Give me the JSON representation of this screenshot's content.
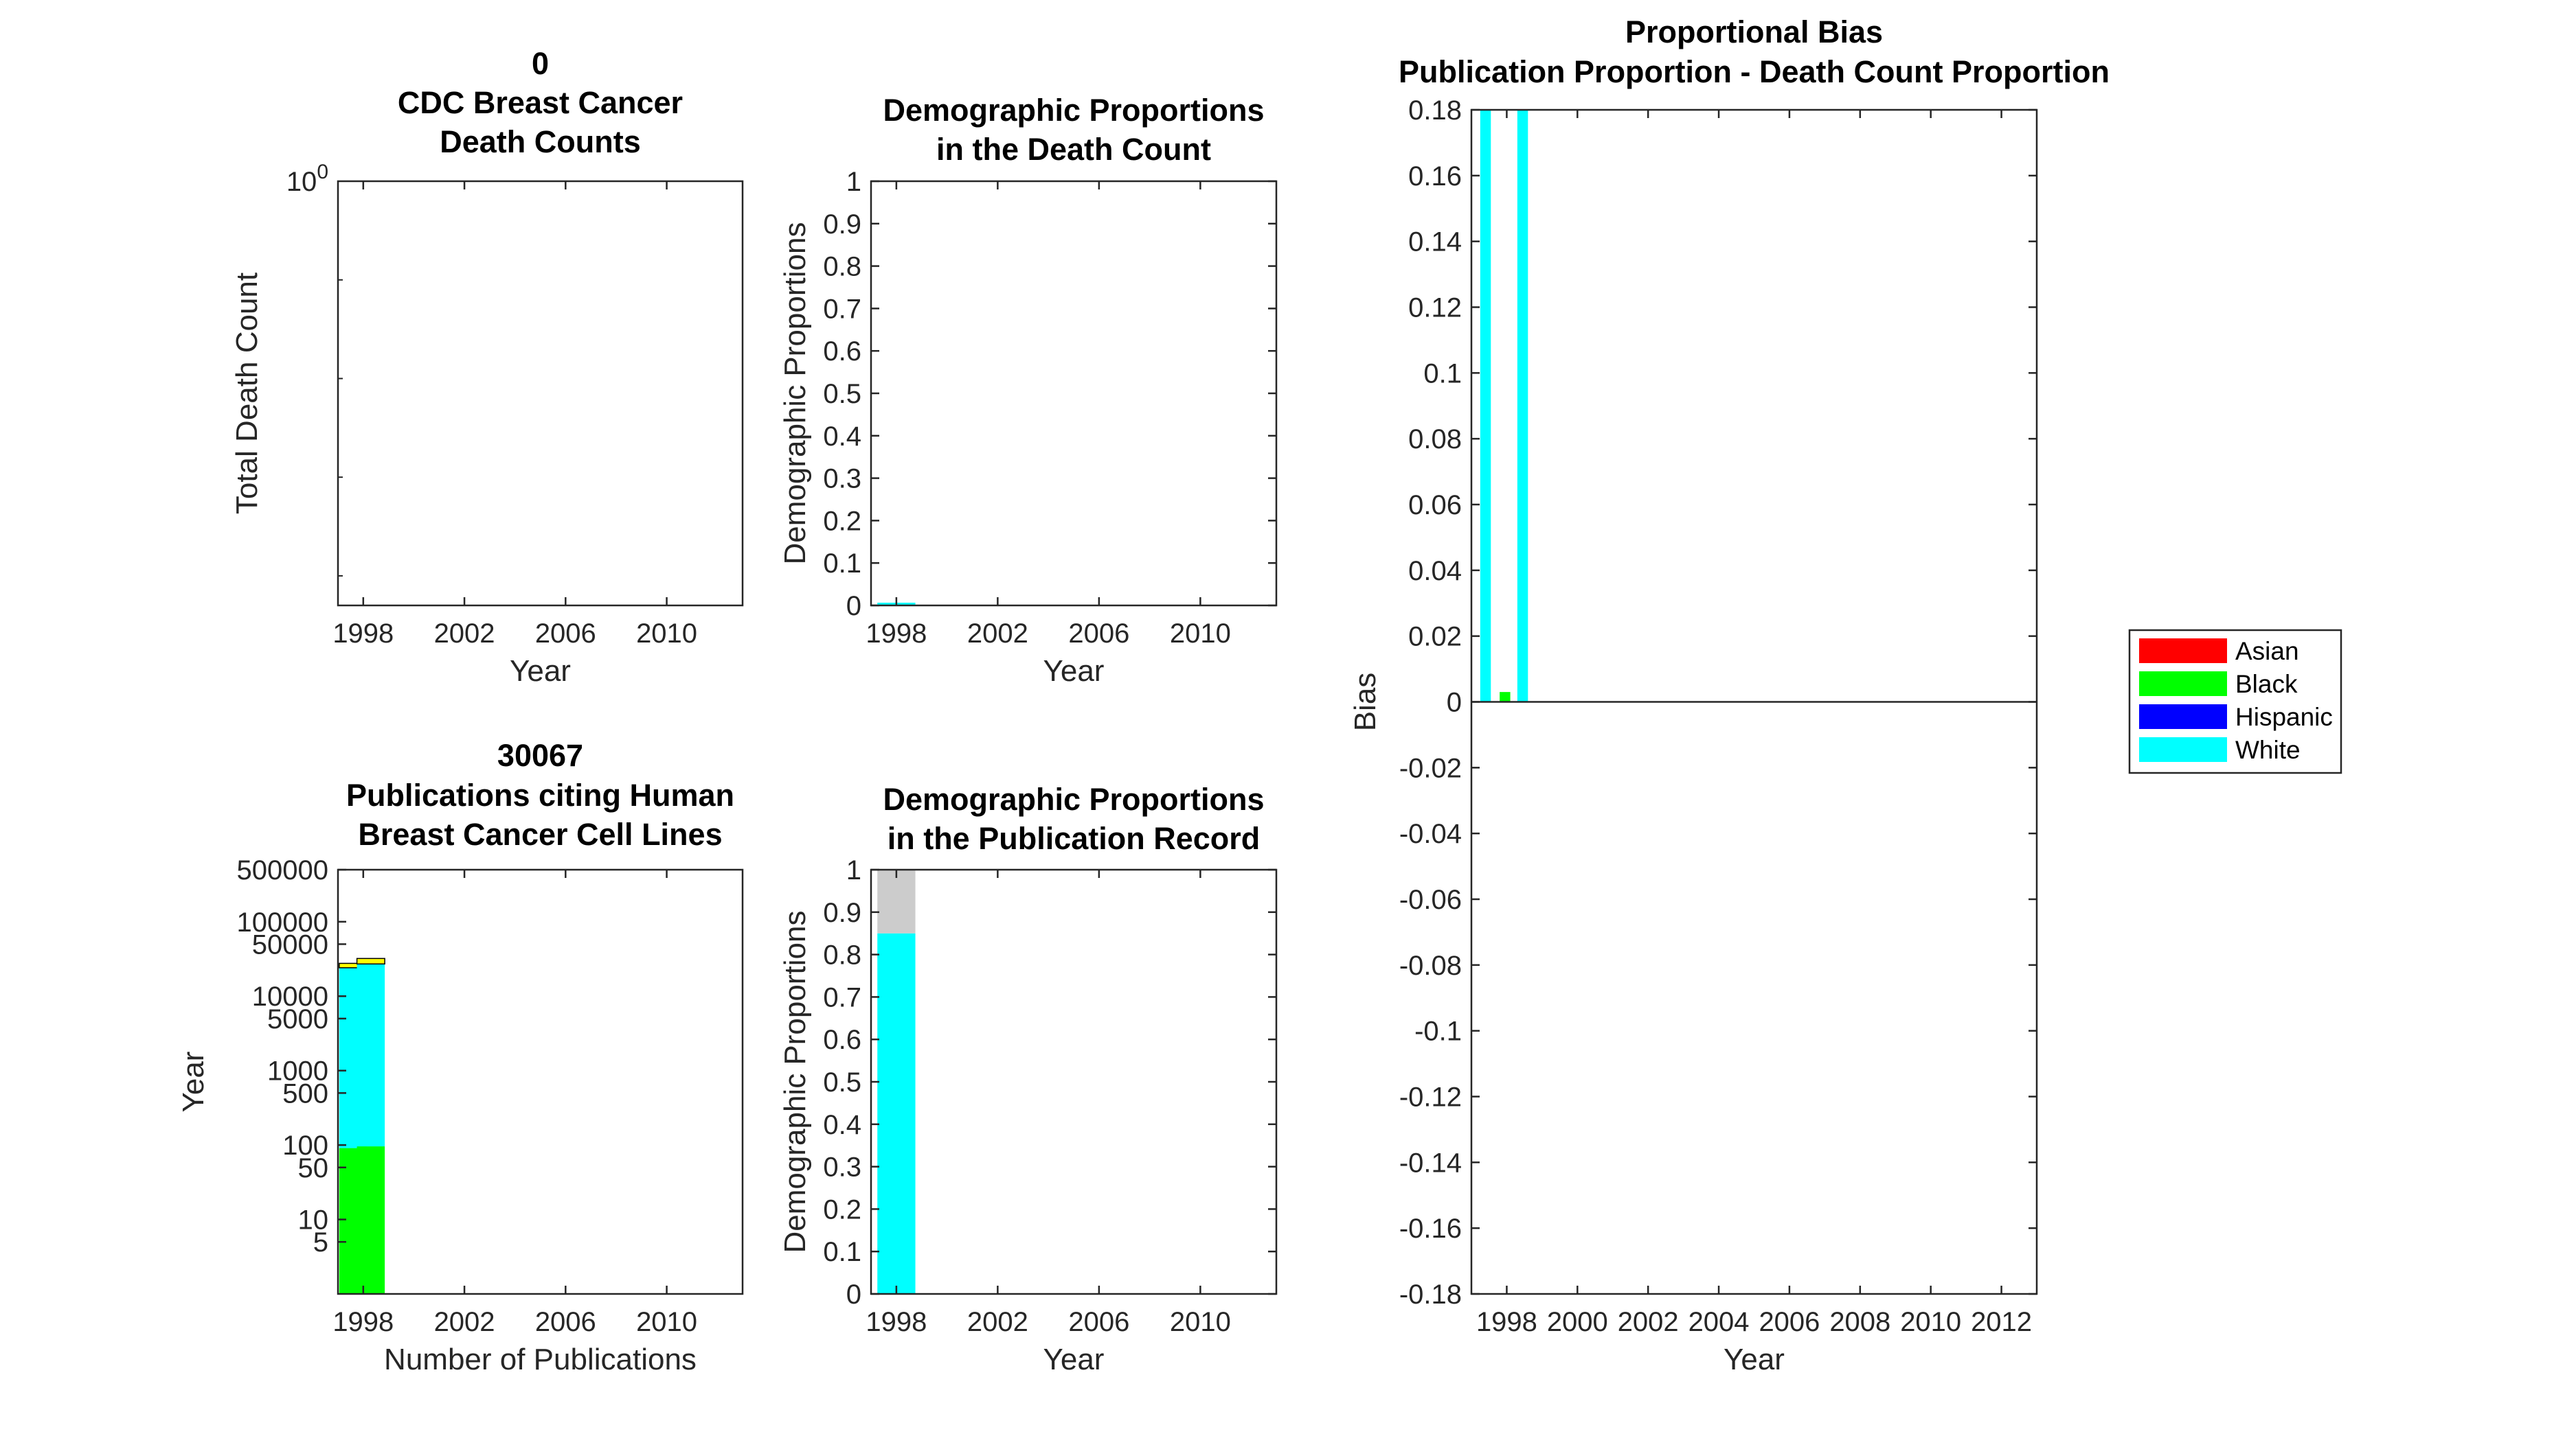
{
  "colors": {
    "asian": "#ff0000",
    "black": "#00ff00",
    "hispanic": "#0000ff",
    "white": "#00ffff",
    "unknown": "#cccccc",
    "other": "#ffff00"
  },
  "chart_data": [
    {
      "id": "death-counts",
      "type": "bar",
      "title_lines": [
        "0",
        "CDC Breast Cancer",
        "Death Counts"
      ],
      "xlabel": "Year",
      "ylabel": "Total Death Count",
      "yscale": "log",
      "xlim": [
        1997,
        2013
      ],
      "xticks": [
        1998,
        2002,
        2006,
        2010
      ],
      "xtick_labels": [
        "1998",
        "2002",
        "2006",
        "2010"
      ],
      "ytick_labels": [
        "10",
        "0"
      ],
      "series": []
    },
    {
      "id": "death-proportions",
      "type": "bar",
      "stacked": true,
      "title_lines": [
        "Demographic Proportions",
        "in the Death Count"
      ],
      "xlabel": "Year",
      "ylabel": "Demographic Proportions",
      "xlim": [
        1997,
        2013
      ],
      "ylim": [
        0,
        1
      ],
      "xticks": [
        1998,
        2002,
        2006,
        2010
      ],
      "xtick_labels": [
        "1998",
        "2002",
        "2006",
        "2010"
      ],
      "yticks": [
        0,
        0.1,
        0.2,
        0.3,
        0.4,
        0.5,
        0.6,
        0.7,
        0.8,
        0.9,
        1
      ],
      "ytick_labels": [
        "0",
        "0.1",
        "0.2",
        "0.3",
        "0.4",
        "0.5",
        "0.6",
        "0.7",
        "0.8",
        "0.9",
        "1"
      ],
      "series": [
        {
          "key": "white",
          "x": [
            1998
          ],
          "values": [
            0.0
          ]
        }
      ]
    },
    {
      "id": "publications",
      "type": "bar",
      "stacked": true,
      "yscale": "log",
      "title_lines": [
        "30067",
        "Publications citing Human",
        "Breast Cancer Cell Lines"
      ],
      "xlabel": "Number of Publications",
      "ylabel": "Year",
      "xlim": [
        1997,
        2013
      ],
      "ylim": [
        1,
        500000
      ],
      "xticks": [
        1998,
        2002,
        2006,
        2010
      ],
      "xtick_labels": [
        "1998",
        "2002",
        "2006",
        "2010"
      ],
      "yticks": [
        5,
        10,
        50,
        100,
        500,
        1000,
        5000,
        10000,
        50000,
        100000,
        500000
      ],
      "ytick_labels": [
        "5",
        "10",
        "50",
        "100",
        "500",
        "1000",
        "5000",
        "10000",
        "50000",
        "100000",
        "500000"
      ],
      "stack_order": [
        "black",
        "white",
        "unknown",
        "other"
      ],
      "bars": [
        {
          "x": 1997.4,
          "segments": [
            {
              "key": "black",
              "value": 90
            },
            {
              "key": "white",
              "value": 24000
            },
            {
              "key": "other",
              "value": 3500
            }
          ]
        },
        {
          "x": 1998.1,
          "segments": [
            {
              "key": "black",
              "value": 95
            },
            {
              "key": "white",
              "value": 27000
            },
            {
              "key": "other",
              "value": 5000
            }
          ]
        }
      ]
    },
    {
      "id": "publication-proportions",
      "type": "bar",
      "stacked": true,
      "title_lines": [
        "Demographic Proportions",
        "in the Publication Record"
      ],
      "xlabel": "Year",
      "ylabel": "Demographic Proportions",
      "xlim": [
        1997,
        2013
      ],
      "ylim": [
        0,
        1
      ],
      "xticks": [
        1998,
        2002,
        2006,
        2010
      ],
      "xtick_labels": [
        "1998",
        "2002",
        "2006",
        "2010"
      ],
      "yticks": [
        0,
        0.1,
        0.2,
        0.3,
        0.4,
        0.5,
        0.6,
        0.7,
        0.8,
        0.9,
        1
      ],
      "ytick_labels": [
        "0",
        "0.1",
        "0.2",
        "0.3",
        "0.4",
        "0.5",
        "0.6",
        "0.7",
        "0.8",
        "0.9",
        "1"
      ],
      "bars": [
        {
          "x": 1998,
          "width": 1.5,
          "segments": [
            {
              "key": "white",
              "value": 0.85
            },
            {
              "key": "unknown",
              "value": 0.15
            }
          ]
        }
      ]
    },
    {
      "id": "proportional-bias",
      "type": "bar",
      "title_lines": [
        "Proportional Bias",
        "Publication Proportion - Death Count Proportion"
      ],
      "xlabel": "Year",
      "ylabel": "Bias",
      "xlim": [
        1997,
        2013
      ],
      "ylim": [
        -0.18,
        0.18
      ],
      "xticks": [
        1998,
        2000,
        2002,
        2004,
        2006,
        2008,
        2010,
        2012
      ],
      "xtick_labels": [
        "1998",
        "2000",
        "2002",
        "2004",
        "2006",
        "2008",
        "2010",
        "2012"
      ],
      "yticks": [
        -0.18,
        -0.16,
        -0.14,
        -0.12,
        -0.1,
        -0.08,
        -0.06,
        -0.04,
        -0.02,
        0,
        0.02,
        0.04,
        0.06,
        0.08,
        0.1,
        0.12,
        0.14,
        0.16,
        0.18
      ],
      "ytick_labels": [
        "-0.18",
        "-0.16",
        "-0.14",
        "-0.12",
        "-0.1",
        "-0.08",
        "-0.06",
        "-0.04",
        "-0.02",
        "0",
        "0.02",
        "0.04",
        "0.06",
        "0.08",
        "0.1",
        "0.12",
        "0.14",
        "0.16",
        "0.18"
      ],
      "bars": [
        {
          "key": "black",
          "x": 1997.2,
          "value": 0.0
        },
        {
          "key": "white",
          "x": 1997.4,
          "value": 0.18
        },
        {
          "key": "black",
          "x": 1997.95,
          "value": 0.003
        },
        {
          "key": "white",
          "x": 1998.45,
          "value": 0.18
        }
      ],
      "legend": {
        "placement": "right",
        "entries": [
          {
            "key": "asian",
            "label": "Asian"
          },
          {
            "key": "black",
            "label": "Black"
          },
          {
            "key": "hispanic",
            "label": "Hispanic"
          },
          {
            "key": "white",
            "label": "White"
          }
        ]
      }
    }
  ]
}
